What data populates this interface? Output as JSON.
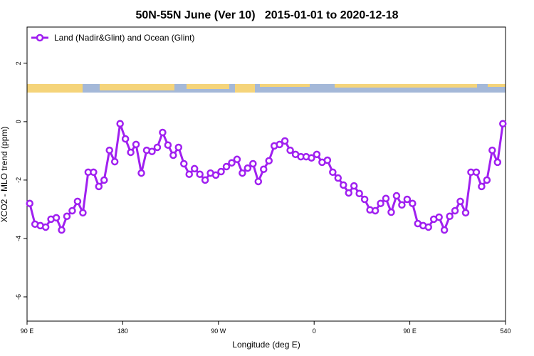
{
  "chart_data": {
    "type": "line",
    "title": "50N-55N June (Ver 10)   2015-01-01 to 2020-12-18",
    "x_label": "Longitude (deg E)",
    "y_label": "XCO2 - MLO trend (ppm)",
    "x": [
      92.5,
      97.5,
      102.5,
      107.5,
      112.5,
      117.5,
      122.5,
      127.5,
      132.5,
      137.5,
      142.5,
      147.5,
      152.5,
      157.5,
      162.5,
      167.5,
      172.5,
      177.5,
      182.5,
      187.5,
      192.5,
      197.5,
      202.5,
      207.5,
      212.5,
      217.5,
      222.5,
      227.5,
      232.5,
      237.5,
      242.5,
      247.5,
      252.5,
      257.5,
      262.5,
      267.5,
      272.5,
      277.5,
      282.5,
      287.5,
      292.5,
      297.5,
      302.5,
      307.5,
      312.5,
      317.5,
      322.5,
      327.5,
      332.5,
      337.5,
      342.5,
      347.5,
      352.5,
      357.5,
      362.5,
      367.5,
      372.5,
      377.5,
      382.5,
      387.5,
      392.5,
      397.5,
      402.5,
      407.5,
      412.5,
      417.5,
      422.5,
      427.5,
      432.5,
      437.5,
      442.5,
      447.5,
      452.5,
      457.5,
      462.5,
      467.5,
      472.5,
      477.5,
      482.5,
      487.5,
      492.5,
      497.5,
      502.5,
      507.5,
      512.5,
      517.5,
      522.5,
      527.5,
      532.5,
      537.5
    ],
    "series": [
      {
        "name": "Land (Nadir&Glint) and Ocean (Glint)",
        "color": "#a020f0",
        "values": [
          -2.8,
          -3.51,
          -3.56,
          -3.61,
          -3.34,
          -3.29,
          -3.71,
          -3.24,
          -3.05,
          -2.73,
          -3.12,
          -1.73,
          -1.73,
          -2.22,
          -2.0,
          -0.98,
          -1.37,
          -0.07,
          -0.59,
          -1.05,
          -0.78,
          -1.76,
          -0.98,
          -1.02,
          -0.88,
          -0.37,
          -0.8,
          -1.15,
          -0.88,
          -1.44,
          -1.8,
          -1.61,
          -1.8,
          -2.0,
          -1.76,
          -1.83,
          -1.71,
          -1.54,
          -1.41,
          -1.29,
          -1.76,
          -1.59,
          -1.44,
          -2.05,
          -1.63,
          -1.34,
          -0.83,
          -0.78,
          -0.66,
          -0.98,
          -1.12,
          -1.2,
          -1.2,
          -1.24,
          -1.12,
          -1.39,
          -1.32,
          -1.73,
          -1.93,
          -2.17,
          -2.44,
          -2.2,
          -2.46,
          -2.66,
          -3.02,
          -3.05,
          -2.8,
          -2.63,
          -3.1,
          -2.54,
          -2.85,
          -2.66,
          -2.8,
          -3.49,
          -3.56,
          -3.61,
          -3.34,
          -3.27,
          -3.71,
          -3.24,
          -3.05,
          -2.73,
          -3.12,
          -1.73,
          -1.73,
          -2.22,
          -2.0,
          -0.98,
          -1.39,
          -0.07
        ]
      }
    ],
    "xlim": [
      90,
      540
    ],
    "xticks": [
      {
        "value": 90,
        "label": "90 E"
      },
      180,
      {
        "value": 270,
        "label": "90 W"
      },
      {
        "value": 360,
        "label": "0"
      },
      {
        "value": 450,
        "label": "90 E"
      },
      540
    ],
    "ylim": [
      -6.83,
      3.24
    ],
    "yticks": [
      -6,
      -4,
      -2,
      0,
      2
    ],
    "legend": "top-left"
  }
}
